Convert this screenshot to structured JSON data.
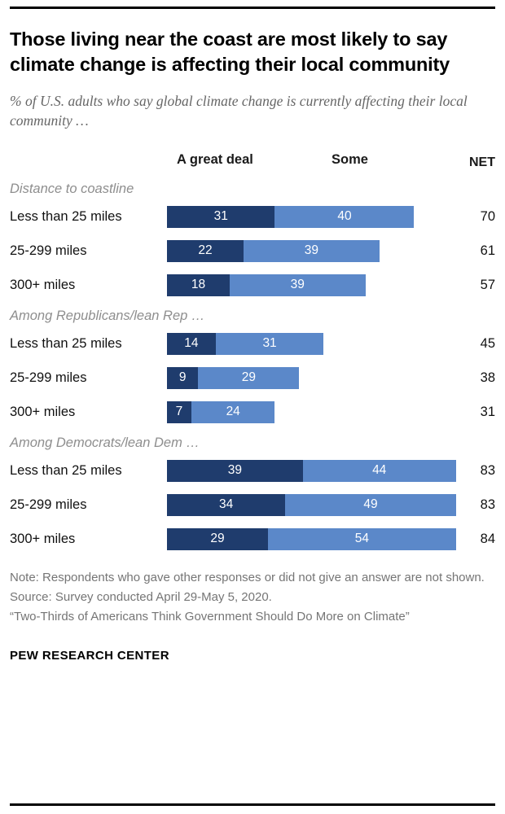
{
  "chart_data": {
    "type": "bar",
    "title": "Those living near the coast are most likely to say climate change is affecting their local community",
    "subtitle": "% of U.S. adults who say global climate change is currently affecting their local community …",
    "legend": [
      "A great deal",
      "Some"
    ],
    "net_label": "NET",
    "xlim": [
      0,
      84
    ],
    "colors": {
      "a_great_deal": "#1f3c6d",
      "some": "#5b88c9"
    },
    "groups": [
      {
        "header": "Distance to coastline",
        "rows": [
          {
            "label": "Less than 25 miles",
            "a_great_deal": 31,
            "some": 40,
            "net": 70
          },
          {
            "label": "25-299 miles",
            "a_great_deal": 22,
            "some": 39,
            "net": 61
          },
          {
            "label": "300+ miles",
            "a_great_deal": 18,
            "some": 39,
            "net": 57
          }
        ]
      },
      {
        "header": "Among Republicans/lean Rep …",
        "rows": [
          {
            "label": "Less than 25 miles",
            "a_great_deal": 14,
            "some": 31,
            "net": 45
          },
          {
            "label": "25-299 miles",
            "a_great_deal": 9,
            "some": 29,
            "net": 38
          },
          {
            "label": "300+ miles",
            "a_great_deal": 7,
            "some": 24,
            "net": 31
          }
        ]
      },
      {
        "header": "Among Democrats/lean Dem …",
        "rows": [
          {
            "label": "Less than 25 miles",
            "a_great_deal": 39,
            "some": 44,
            "net": 83
          },
          {
            "label": "25-299 miles",
            "a_great_deal": 34,
            "some": 49,
            "net": 83
          },
          {
            "label": "300+ miles",
            "a_great_deal": 29,
            "some": 54,
            "net": 84
          }
        ]
      }
    ]
  },
  "notes": [
    "Note: Respondents who gave other responses or did not give an answer are not shown.",
    "Source: Survey conducted April 29-May 5, 2020.",
    "“Two-Thirds of Americans Think Government Should Do More on Climate”"
  ],
  "footer": "PEW RESEARCH CENTER"
}
